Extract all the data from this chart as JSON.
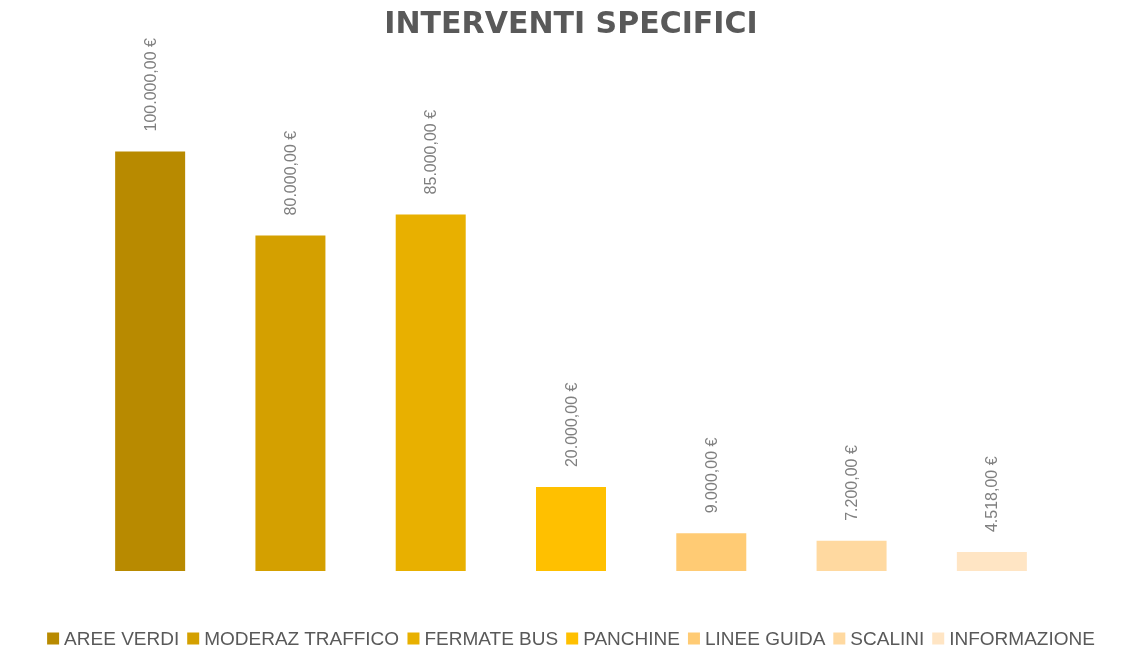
{
  "chart_data": {
    "type": "bar",
    "title": "INTERVENTI SPECIFICI",
    "legend": "bottom",
    "stacked": true,
    "categories": [
      null,
      null,
      null,
      null,
      null,
      null,
      null
    ],
    "series": [
      {
        "name": "AREE VERDI",
        "color": "#b88a00",
        "values": [
          100000,
          null,
          null,
          null,
          null,
          null,
          null
        ],
        "value_labels": [
          "100.000,00 €",
          null,
          null,
          null,
          null,
          null,
          null
        ]
      },
      {
        "name": "MODERAZ TRAFFICO",
        "color": "#d4a000",
        "values": [
          null,
          80000,
          null,
          null,
          null,
          null,
          null
        ],
        "value_labels": [
          null,
          "80.000,00 €",
          null,
          null,
          null,
          null,
          null
        ]
      },
      {
        "name": "FERMATE BUS",
        "color": "#e8b000",
        "values": [
          null,
          null,
          85000,
          null,
          null,
          null,
          null
        ],
        "value_labels": [
          null,
          null,
          "85.000,00 €",
          null,
          null,
          null,
          null
        ]
      },
      {
        "name": "PANCHINE",
        "color": "#ffc000",
        "values": [
          null,
          null,
          null,
          20000,
          null,
          null,
          null
        ],
        "value_labels": [
          null,
          null,
          null,
          "20.000,00 €",
          null,
          null,
          null
        ]
      },
      {
        "name": "LINEE GUIDA",
        "color": "#ffcb74",
        "values": [
          null,
          null,
          null,
          null,
          9000,
          null,
          null
        ],
        "value_labels": [
          null,
          null,
          null,
          null,
          "9.000,00 €",
          null,
          null
        ]
      },
      {
        "name": "SCALINI",
        "color": "#ffd9a0",
        "values": [
          null,
          null,
          null,
          null,
          null,
          7200,
          null
        ],
        "value_labels": [
          null,
          null,
          null,
          null,
          null,
          "7.200,00 €",
          null
        ]
      },
      {
        "name": "INFORMAZIONE",
        "color": "#ffe5c4",
        "values": [
          null,
          null,
          null,
          null,
          null,
          null,
          4518
        ],
        "value_labels": [
          null,
          null,
          null,
          null,
          null,
          null,
          "4.518,00 €"
        ]
      }
    ]
  }
}
